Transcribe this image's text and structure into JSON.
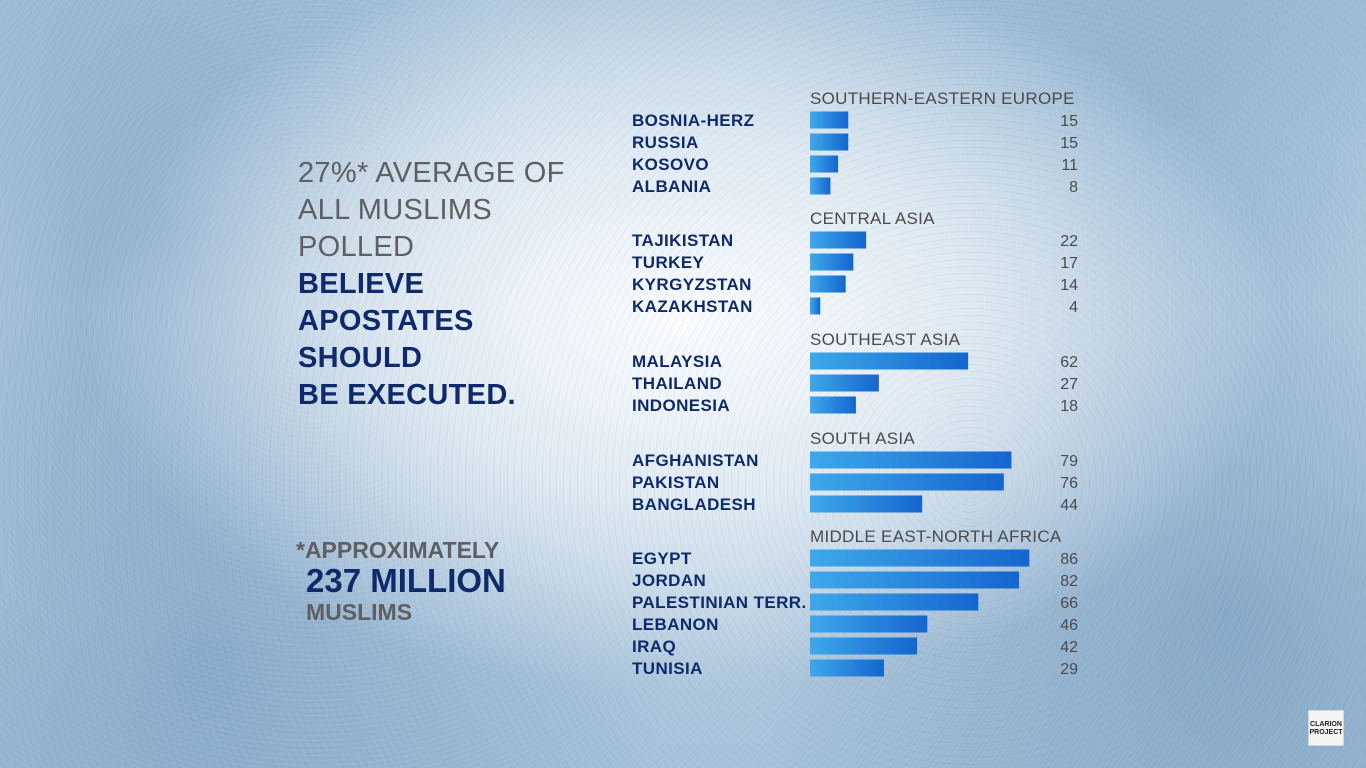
{
  "headline": {
    "line1": "27%* AVERAGE OF",
    "line2": "ALL MUSLIMS",
    "line3": "POLLED",
    "line4": "BELIEVE",
    "line5": "APOSTATES",
    "line6": "SHOULD",
    "line7": "BE EXECUTED."
  },
  "footnote": {
    "line1": "*APPROXIMATELY",
    "line2": "237 MILLION",
    "line3": "MUSLIMS"
  },
  "logo": {
    "line1": "CLARION",
    "line2": "PROJECT"
  },
  "colors": {
    "bar_light": "#3ea8ea",
    "bar_dark": "#1565cf",
    "navy_text": "#0f2a6b",
    "grey_text": "#5e5f62"
  },
  "chart_data": {
    "type": "bar",
    "orientation": "horizontal",
    "xlim": [
      0,
      100
    ],
    "groups": [
      {
        "title": "SOUTHERN-EASTERN EUROPE",
        "items": [
          {
            "label": "BOSNIA-HERZ",
            "value": 15
          },
          {
            "label": "RUSSIA",
            "value": 15
          },
          {
            "label": "KOSOVO",
            "value": 11
          },
          {
            "label": "ALBANIA",
            "value": 8
          }
        ]
      },
      {
        "title": "CENTRAL ASIA",
        "items": [
          {
            "label": "TAJIKISTAN",
            "value": 22
          },
          {
            "label": "TURKEY",
            "value": 17
          },
          {
            "label": "KYRGYZSTAN",
            "value": 14
          },
          {
            "label": "KAZAKHSTAN",
            "value": 4
          }
        ]
      },
      {
        "title": "SOUTHEAST ASIA",
        "items": [
          {
            "label": "MALAYSIA",
            "value": 62
          },
          {
            "label": "THAILAND",
            "value": 27
          },
          {
            "label": "INDONESIA",
            "value": 18
          }
        ]
      },
      {
        "title": "SOUTH ASIA",
        "items": [
          {
            "label": "AFGHANISTAN",
            "value": 79
          },
          {
            "label": "PAKISTAN",
            "value": 76
          },
          {
            "label": "BANGLADESH",
            "value": 44
          }
        ]
      },
      {
        "title": "MIDDLE EAST-NORTH AFRICA",
        "items": [
          {
            "label": "EGYPT",
            "value": 86
          },
          {
            "label": "JORDAN",
            "value": 82
          },
          {
            "label": "PALESTINIAN TERR.",
            "value": 66
          },
          {
            "label": "LEBANON",
            "value": 46
          },
          {
            "label": "IRAQ",
            "value": 42
          },
          {
            "label": "TUNISIA",
            "value": 29
          }
        ]
      }
    ]
  }
}
